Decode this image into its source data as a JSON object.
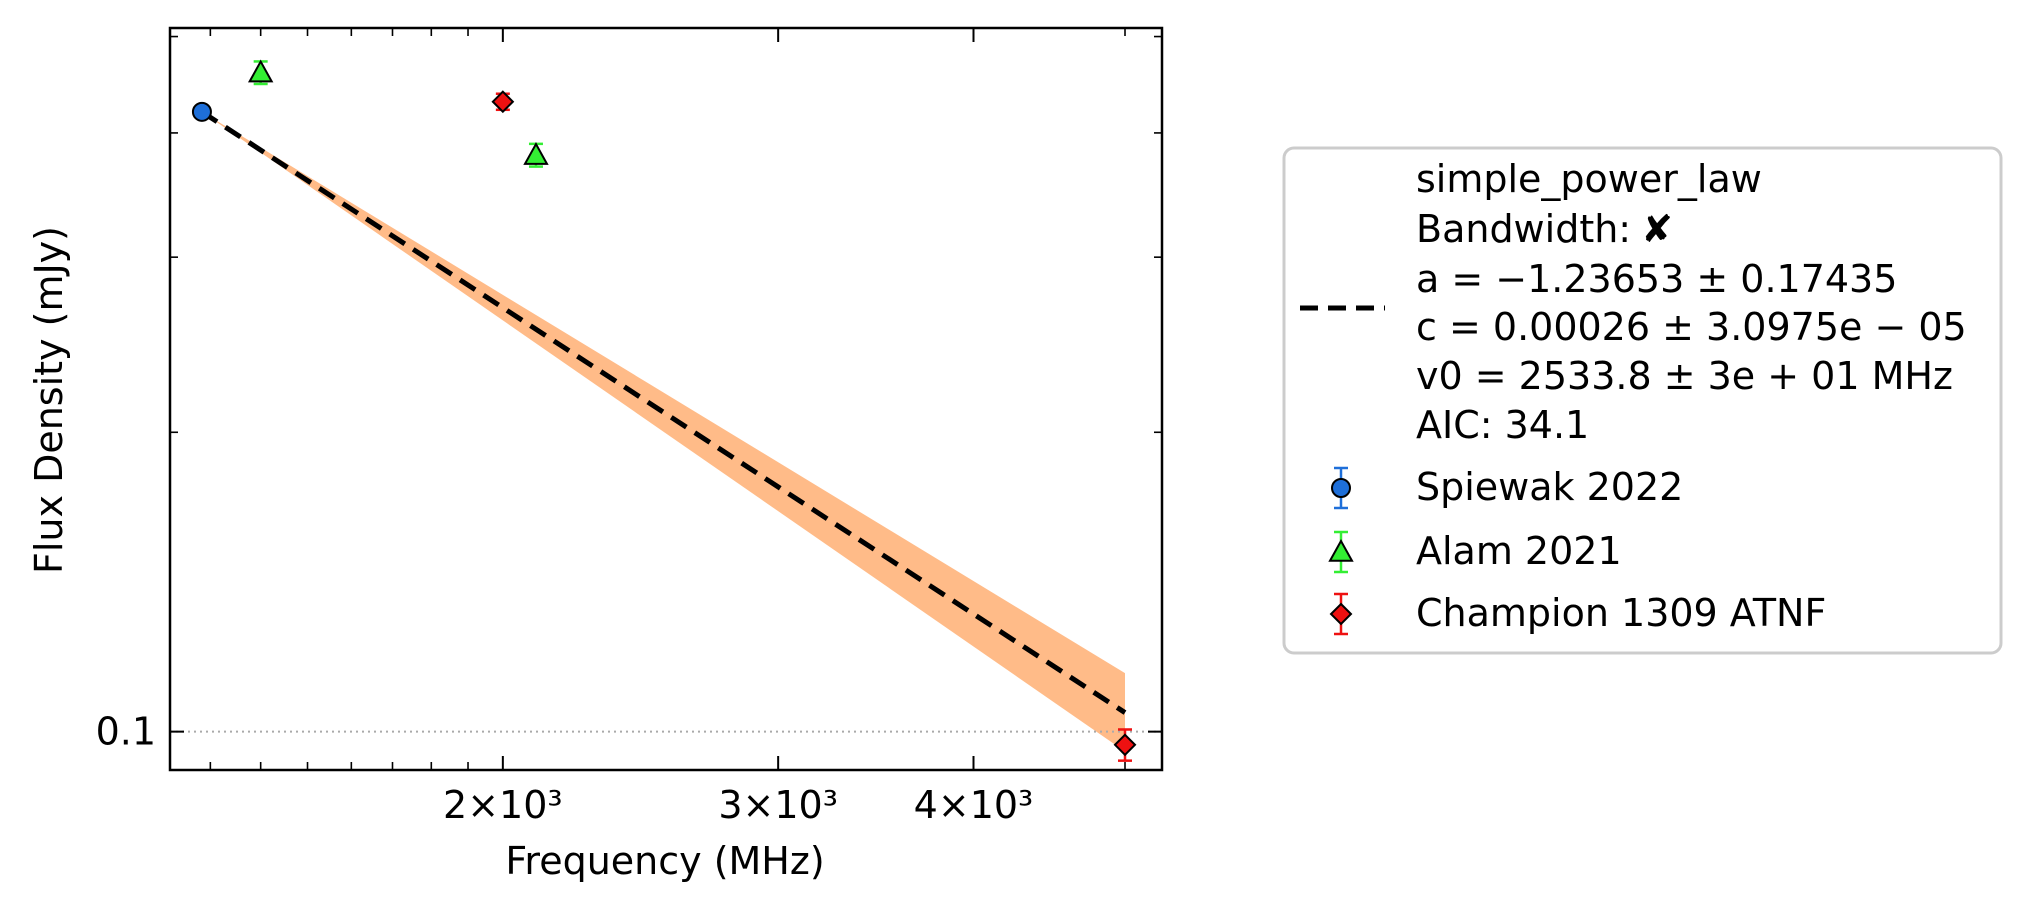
{
  "chart_data": {
    "type": "scatter",
    "title": "",
    "xlabel": "Frequency (MHz)",
    "ylabel": "Flux Density (mJy)",
    "xscale": "log",
    "yscale": "log",
    "xlim": [
      1225,
      5280
    ],
    "ylim": [
      0.0915,
      0.51
    ],
    "x_ticks": [
      {
        "value": 2000,
        "label": "2×10³"
      },
      {
        "value": 3000,
        "label": "3×10³"
      },
      {
        "value": 4000,
        "label": "4×10³"
      }
    ],
    "y_ticks": [
      {
        "value": 0.1,
        "label": "0.1"
      }
    ],
    "grid": false,
    "hline": {
      "y": 0.1,
      "style": "dotted"
    },
    "legend_position": "outside-right",
    "fit": {
      "name": "simple_power_law",
      "bandwidth": "✘",
      "params": [
        "a = −1.23653 ± 0.17435",
        "c = 0.00026 ± 3.0975e − 05",
        "v0 = 2533.8 ± 3e + 01 MHz"
      ],
      "aic": "AIC: 34.1",
      "bandwidth_label": "Bandwidth:",
      "line_color": "#000000",
      "band_color": "#ffbb88",
      "x": [
        1284,
        5000
      ],
      "y": [
        0.42,
        0.1045
      ],
      "band_lower": [
        0.42,
        0.0955
      ],
      "band_upper": [
        0.42,
        0.1145
      ]
    },
    "series": [
      {
        "name": "Spiewak 2022",
        "marker": "circle",
        "color": "#1e6fd9",
        "points": [
          {
            "x": 1284,
            "y": 0.42,
            "yerr": 0.0
          }
        ]
      },
      {
        "name": "Alam 2021",
        "marker": "triangle",
        "color": "#33ee33",
        "points": [
          {
            "x": 1400,
            "y": 0.46,
            "yerr": 0.012
          },
          {
            "x": 2100,
            "y": 0.38,
            "yerr": 0.01
          }
        ]
      },
      {
        "name": "Champion 1309 ATNF",
        "marker": "diamond",
        "color": "#ee1111",
        "points": [
          {
            "x": 2000,
            "y": 0.43,
            "yerr": 0.008
          },
          {
            "x": 5000,
            "y": 0.097,
            "yerr": 0.0035
          }
        ]
      }
    ]
  }
}
